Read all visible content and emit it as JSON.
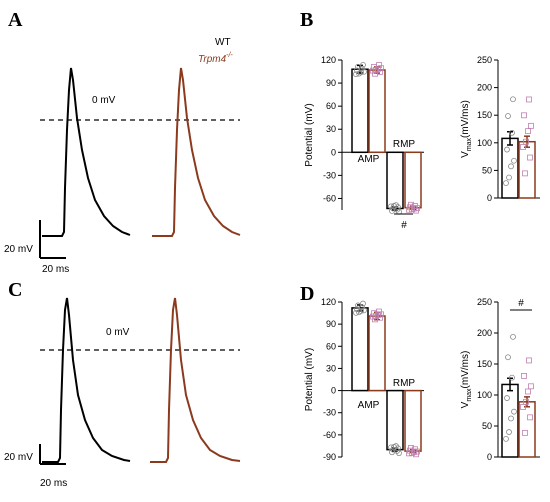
{
  "panels": {
    "A": "A",
    "B": "B",
    "C": "C",
    "D": "D"
  },
  "legend": {
    "wt": "WT",
    "ko": "Trpm4",
    "ko_sup": "-/-"
  },
  "colors": {
    "wt": "#000000",
    "ko": "#8b3a1e",
    "wt_marker": "#888888",
    "ko_marker": "#c080b0"
  },
  "traces": {
    "zero_label_top": "0 mV",
    "zero_label_bottom": "0 mV",
    "scale_v_top": "20 mV",
    "scale_t_top": "20 ms",
    "scale_v_bottom": "20 mV",
    "scale_t_bottom": "20 ms"
  },
  "chart_data": [
    {
      "id": "B-potential",
      "type": "bar",
      "ylabel": "Potential (mV)",
      "ylim": [
        -75,
        120
      ],
      "yticks": [
        -60,
        -30,
        0,
        30,
        60,
        90,
        120
      ],
      "categories": [
        "AMP",
        "RMP"
      ],
      "series": [
        {
          "name": "WT",
          "values": [
            108,
            -73
          ],
          "errors": [
            5,
            2
          ]
        },
        {
          "name": "Trpm4-/-",
          "values": [
            107,
            -72
          ],
          "errors": [
            4,
            2
          ]
        }
      ],
      "annotations": [
        "#"
      ]
    },
    {
      "id": "B-vmax",
      "type": "bar",
      "ylabel": "Vmax(mV/ms)",
      "ylim": [
        0,
        250
      ],
      "yticks": [
        0,
        50,
        100,
        150,
        200,
        250
      ],
      "series": [
        {
          "name": "WT",
          "values": [
            108
          ],
          "errors": [
            12
          ]
        },
        {
          "name": "Trpm4-/-",
          "values": [
            102
          ],
          "errors": [
            10
          ]
        }
      ],
      "annotations": []
    },
    {
      "id": "D-potential",
      "type": "bar",
      "ylabel": "Potential (mV)",
      "ylim": [
        -90,
        120
      ],
      "yticks": [
        -90,
        -60,
        -30,
        0,
        30,
        60,
        90,
        120
      ],
      "categories": [
        "AMP",
        "RMP"
      ],
      "series": [
        {
          "name": "WT",
          "values": [
            112,
            -80
          ],
          "errors": [
            4,
            2
          ]
        },
        {
          "name": "Trpm4-/-",
          "values": [
            101,
            -82
          ],
          "errors": [
            5,
            2
          ]
        }
      ],
      "annotations": []
    },
    {
      "id": "D-vmax",
      "type": "bar",
      "ylabel": "Vmax(mV/ms)",
      "ylim": [
        0,
        250
      ],
      "yticks": [
        0,
        50,
        100,
        150,
        200,
        250
      ],
      "series": [
        {
          "name": "WT",
          "values": [
            117
          ],
          "errors": [
            10
          ]
        },
        {
          "name": "Trpm4-/-",
          "values": [
            89
          ],
          "errors": [
            8
          ]
        }
      ],
      "annotations": [
        "#"
      ]
    }
  ]
}
